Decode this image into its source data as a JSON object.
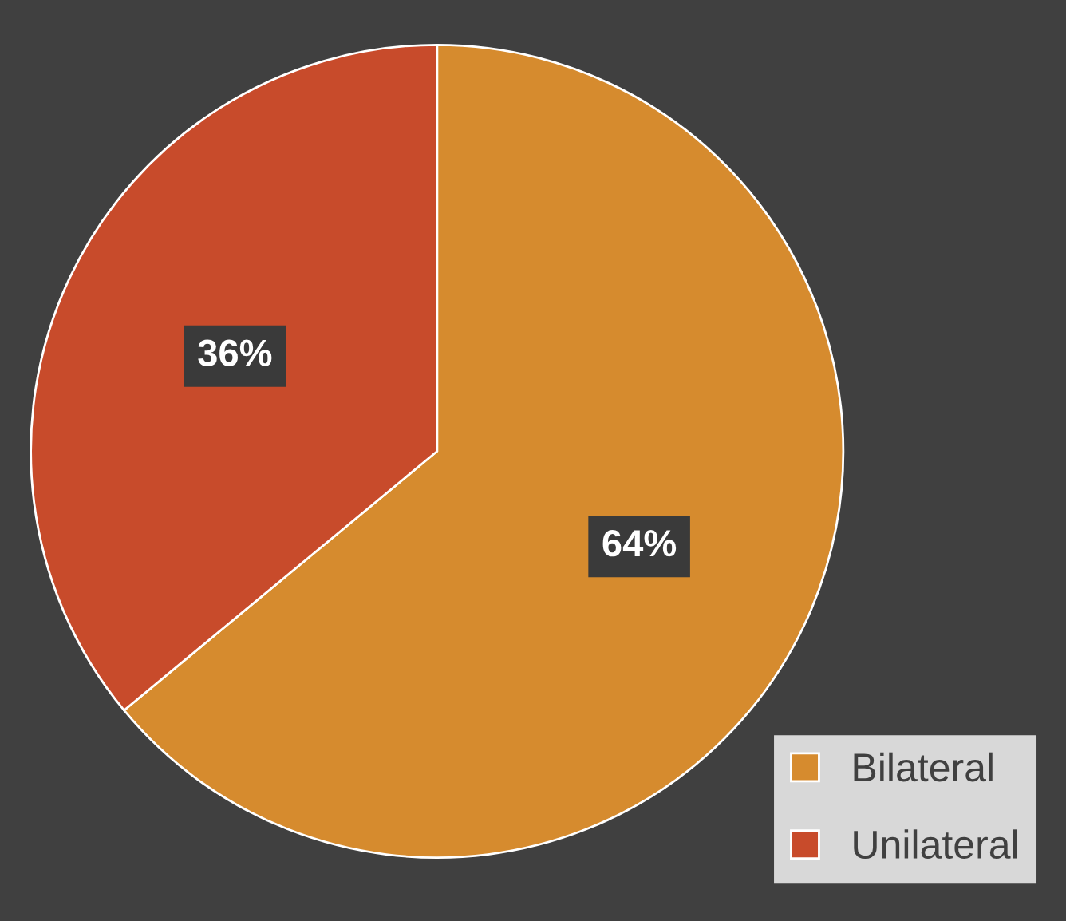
{
  "chart_data": {
    "type": "pie",
    "categories": [
      "Bilateral",
      "Unilateral"
    ],
    "values": [
      64,
      36
    ],
    "colors": [
      "#d68b2e",
      "#c84b2b"
    ],
    "value_labels": [
      "64%",
      "36%"
    ],
    "legend": "bottom right"
  }
}
